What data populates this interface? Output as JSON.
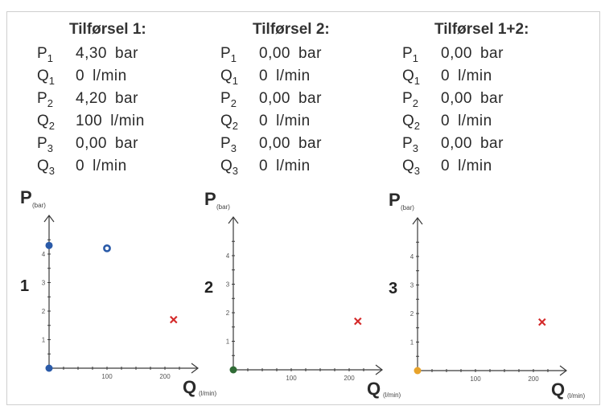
{
  "colors": {
    "blue": "#2a5aa8",
    "green": "#2f6b35",
    "orange": "#e8a32a",
    "cross": "#d42a2a"
  },
  "panels": [
    {
      "title": "Tilførsel 1:",
      "number": "1",
      "rows": [
        {
          "sym": "P",
          "sub": "1",
          "value": "4,30",
          "unit": "bar"
        },
        {
          "sym": "Q",
          "sub": "1",
          "value": "0",
          "unit": "l/min"
        },
        {
          "sym": "P",
          "sub": "2",
          "value": "4,20",
          "unit": "bar"
        },
        {
          "sym": "Q",
          "sub": "2",
          "value": "100",
          "unit": "l/min"
        },
        {
          "sym": "P",
          "sub": "3",
          "value": "0,00",
          "unit": "bar"
        },
        {
          "sym": "Q",
          "sub": "3",
          "value": "0",
          "unit": "l/min"
        }
      ],
      "origin_color": "blue",
      "points": [
        {
          "q": 0,
          "p": 4.3,
          "style": "dot",
          "color": "blue"
        },
        {
          "q": 100,
          "p": 4.2,
          "style": "ring",
          "color": "blue"
        },
        {
          "q": 215,
          "p": 1.7,
          "style": "cross",
          "color": "cross"
        }
      ]
    },
    {
      "title": "Tilførsel 2:",
      "number": "2",
      "rows": [
        {
          "sym": "P",
          "sub": "1",
          "value": "0,00",
          "unit": "bar"
        },
        {
          "sym": "Q",
          "sub": "1",
          "value": "0",
          "unit": "l/min"
        },
        {
          "sym": "P",
          "sub": "2",
          "value": "0,00",
          "unit": "bar"
        },
        {
          "sym": "Q",
          "sub": "2",
          "value": "0",
          "unit": "l/min"
        },
        {
          "sym": "P",
          "sub": "3",
          "value": "0,00",
          "unit": "bar"
        },
        {
          "sym": "Q",
          "sub": "3",
          "value": "0",
          "unit": "l/min"
        }
      ],
      "origin_color": "green",
      "points": [
        {
          "q": 215,
          "p": 1.7,
          "style": "cross",
          "color": "cross"
        }
      ]
    },
    {
      "title": "Tilførsel 1+2:",
      "number": "3",
      "rows": [
        {
          "sym": "P",
          "sub": "1",
          "value": "0,00",
          "unit": "bar"
        },
        {
          "sym": "Q",
          "sub": "1",
          "value": "0",
          "unit": "l/min"
        },
        {
          "sym": "P",
          "sub": "2",
          "value": "0,00",
          "unit": "bar"
        },
        {
          "sym": "Q",
          "sub": "2",
          "value": "0",
          "unit": "l/min"
        },
        {
          "sym": "P",
          "sub": "3",
          "value": "0,00",
          "unit": "bar"
        },
        {
          "sym": "Q",
          "sub": "3",
          "value": "0",
          "unit": "l/min"
        }
      ],
      "origin_color": "orange",
      "points": [
        {
          "q": 215,
          "p": 1.7,
          "style": "cross",
          "color": "cross"
        }
      ]
    }
  ],
  "axis": {
    "p_label": "P",
    "p_unit": "(bar)",
    "q_label": "Q",
    "q_unit": "(l/min)",
    "p_ticks": [
      "1",
      "2",
      "3",
      "4"
    ],
    "q_ticks": [
      "100",
      "200"
    ]
  }
}
